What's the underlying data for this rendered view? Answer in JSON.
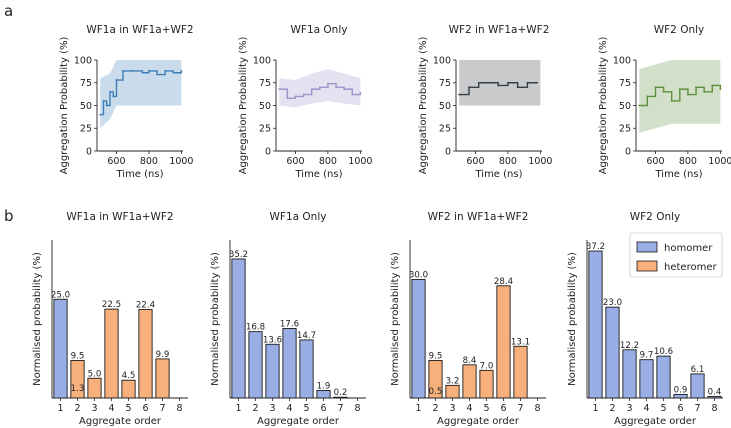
{
  "panel_labels": {
    "a": "a",
    "b": "b"
  },
  "colors": {
    "wf1a_in_mix": "#3f7fb8",
    "wf1a_only": "#9f93c9",
    "wf2_in_mix": "#3a3f47",
    "wf2_only": "#5e8f3c",
    "homomer": "#9aaee6",
    "heteromer": "#f7b07c",
    "bar_edge": "#1a1a1a"
  },
  "chart_data": [
    {
      "type": "line",
      "panel": "a",
      "title": "WF1a in WF1a+WF2",
      "xlabel": "Time (ns)",
      "ylabel": "Aggregation Probability (%)",
      "xlim": [
        480,
        1010
      ],
      "ylim": [
        0,
        100
      ],
      "xticks": [
        "600",
        "800",
        "1000"
      ],
      "yticks": [
        "0",
        "25",
        "50",
        "75",
        "100"
      ],
      "color_key": "wf1a_in_mix",
      "series": [
        {
          "name": "mean",
          "x": [
            500,
            520,
            540,
            560,
            580,
            600,
            640,
            700,
            760,
            800,
            850,
            900,
            950,
            1000
          ],
          "y": [
            40,
            55,
            50,
            65,
            60,
            78,
            88,
            88,
            86,
            88,
            84,
            88,
            86,
            88
          ]
        }
      ],
      "band": {
        "x": [
          500,
          560,
          600,
          650,
          1000
        ],
        "low": [
          25,
          35,
          50,
          50,
          50
        ],
        "high": [
          80,
          85,
          100,
          100,
          100
        ]
      }
    },
    {
      "type": "line",
      "panel": "a",
      "title": "WF1a Only",
      "xlabel": "Time (ns)",
      "ylabel": "Aggregation Probability (%)",
      "xlim": [
        480,
        1010
      ],
      "ylim": [
        0,
        100
      ],
      "xticks": [
        "600",
        "800",
        "1000"
      ],
      "yticks": [
        "0",
        "25",
        "50",
        "75",
        "100"
      ],
      "color_key": "wf1a_only",
      "series": [
        {
          "name": "mean",
          "x": [
            500,
            550,
            600,
            650,
            700,
            750,
            800,
            850,
            900,
            950,
            1000
          ],
          "y": [
            68,
            58,
            60,
            62,
            68,
            70,
            74,
            70,
            68,
            62,
            64
          ]
        }
      ],
      "band": {
        "x": [
          500,
          600,
          700,
          800,
          900,
          1000
        ],
        "low": [
          50,
          48,
          52,
          55,
          52,
          50
        ],
        "high": [
          80,
          78,
          85,
          90,
          85,
          80
        ]
      }
    },
    {
      "type": "line",
      "panel": "a",
      "title": "WF2 in WF1a+WF2",
      "xlabel": "Time (ns)",
      "ylabel": "Aggregation Probability (%)",
      "xlim": [
        480,
        1010
      ],
      "ylim": [
        0,
        100
      ],
      "xticks": [
        "600",
        "800",
        "1000"
      ],
      "yticks": [
        "0",
        "25",
        "50",
        "75",
        "100"
      ],
      "color_key": "wf2_in_mix",
      "series": [
        {
          "name": "mean",
          "x": [
            500,
            560,
            620,
            680,
            740,
            800,
            860,
            920,
            980
          ],
          "y": [
            62,
            70,
            75,
            75,
            72,
            75,
            70,
            75,
            75
          ]
        }
      ],
      "band": {
        "x": [
          500,
          600,
          800,
          1000
        ],
        "low": [
          50,
          50,
          50,
          50
        ],
        "high": [
          100,
          100,
          100,
          100
        ]
      }
    },
    {
      "type": "line",
      "panel": "a",
      "title": "WF2 Only",
      "xlabel": "Time (ns)",
      "ylabel": "Aggregation Probability (%)",
      "xlim": [
        480,
        1010
      ],
      "ylim": [
        0,
        100
      ],
      "xticks": [
        "600",
        "800",
        "1000"
      ],
      "yticks": [
        "0",
        "25",
        "50",
        "75",
        "100"
      ],
      "color_key": "wf2_only",
      "series": [
        {
          "name": "mean",
          "x": [
            500,
            550,
            600,
            650,
            700,
            750,
            800,
            850,
            900,
            950,
            1000
          ],
          "y": [
            50,
            60,
            70,
            65,
            55,
            68,
            62,
            70,
            65,
            72,
            68
          ]
        }
      ],
      "band": {
        "x": [
          500,
          600,
          700,
          800,
          900,
          1000
        ],
        "low": [
          20,
          25,
          30,
          30,
          30,
          30
        ],
        "high": [
          90,
          95,
          100,
          100,
          100,
          100
        ]
      }
    },
    {
      "type": "bar",
      "panel": "b",
      "title": "WF1a in WF1a+WF2",
      "xlabel": "Aggregate order",
      "ylabel": "Normalised probability (%)",
      "ylim": [
        0,
        40
      ],
      "categories": [
        "1",
        "2",
        "3",
        "4",
        "5",
        "6",
        "7",
        "8"
      ],
      "series": [
        {
          "name": "homomer",
          "values": [
            25.0,
            1.3,
            null,
            null,
            null,
            null,
            null,
            null
          ],
          "labels": [
            "25.0",
            "1.3",
            "",
            "",
            "",
            "",
            "",
            ""
          ]
        },
        {
          "name": "heteromer",
          "values": [
            null,
            9.5,
            5.0,
            22.5,
            4.5,
            22.4,
            9.9,
            null
          ],
          "labels": [
            "",
            "9.5",
            "5.0",
            "22.5",
            "4.5",
            "22.4",
            "9.9",
            ""
          ]
        }
      ]
    },
    {
      "type": "bar",
      "panel": "b",
      "title": "WF1a Only",
      "xlabel": "Aggregate order",
      "ylabel": "Normalised probability (%)",
      "ylim": [
        0,
        40
      ],
      "categories": [
        "1",
        "2",
        "3",
        "4",
        "5",
        "6",
        "7",
        "8"
      ],
      "series": [
        {
          "name": "homomer",
          "values": [
            35.2,
            16.8,
            13.6,
            17.6,
            14.7,
            1.9,
            0.2,
            null
          ],
          "labels": [
            "35.2",
            "16.8",
            "13.6",
            "17.6",
            "14.7",
            "1.9",
            "0.2",
            ""
          ]
        }
      ]
    },
    {
      "type": "bar",
      "panel": "b",
      "title": "WF2 in WF1a+WF2",
      "xlabel": "Aggregate order",
      "ylabel": "Normalised probability (%)",
      "ylim": [
        0,
        40
      ],
      "categories": [
        "1",
        "2",
        "3",
        "4",
        "5",
        "6",
        "7",
        "8"
      ],
      "series": [
        {
          "name": "homomer",
          "values": [
            30.0,
            0.5,
            null,
            null,
            null,
            null,
            null,
            null
          ],
          "labels": [
            "30.0",
            "0.5",
            "",
            "",
            "",
            "",
            "",
            ""
          ]
        },
        {
          "name": "heteromer",
          "values": [
            null,
            9.5,
            3.2,
            8.4,
            7.0,
            28.4,
            13.1,
            null
          ],
          "labels": [
            "",
            "9.5",
            "3.2",
            "8.4",
            "7.0",
            "28.4",
            "13.1",
            ""
          ]
        }
      ]
    },
    {
      "type": "bar",
      "panel": "b",
      "title": "WF2 Only",
      "xlabel": "Aggregate order",
      "ylabel": "Normalised probability (%)",
      "ylim": [
        0,
        40
      ],
      "categories": [
        "1",
        "2",
        "3",
        "4",
        "5",
        "6",
        "7",
        "8"
      ],
      "legend": [
        "homomer",
        "heteromer"
      ],
      "legend_position": "top-right",
      "series": [
        {
          "name": "homomer",
          "values": [
            37.2,
            23.0,
            12.2,
            9.7,
            10.6,
            0.9,
            6.1,
            0.4
          ],
          "labels": [
            "37.2",
            "23.0",
            "12.2",
            "9.7",
            "10.6",
            "0.9",
            "6.1",
            "0.4"
          ]
        }
      ]
    }
  ]
}
